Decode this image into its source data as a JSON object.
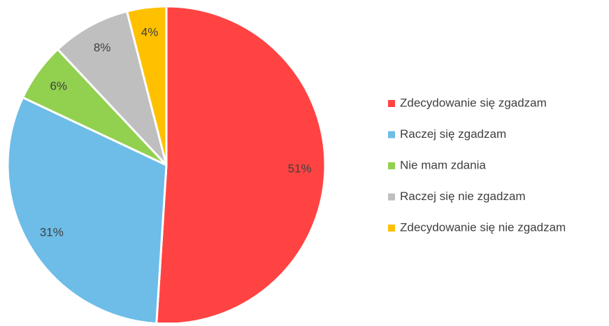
{
  "chart_data": {
    "type": "pie",
    "categories": [
      "Zdecydowanie się zgadzam",
      "Raczej się zgadzam",
      "Nie mam zdania",
      "Raczej się nie zgadzam",
      "Zdecydowanie się nie zgadzam"
    ],
    "values": [
      51,
      31,
      6,
      8,
      4
    ],
    "value_labels": [
      "51%",
      "31%",
      "6%",
      "8%",
      "4%"
    ],
    "colors": [
      "#ff4343",
      "#6dbde8",
      "#92d050",
      "#bfbfbf",
      "#ffc000"
    ],
    "legend": "right"
  }
}
